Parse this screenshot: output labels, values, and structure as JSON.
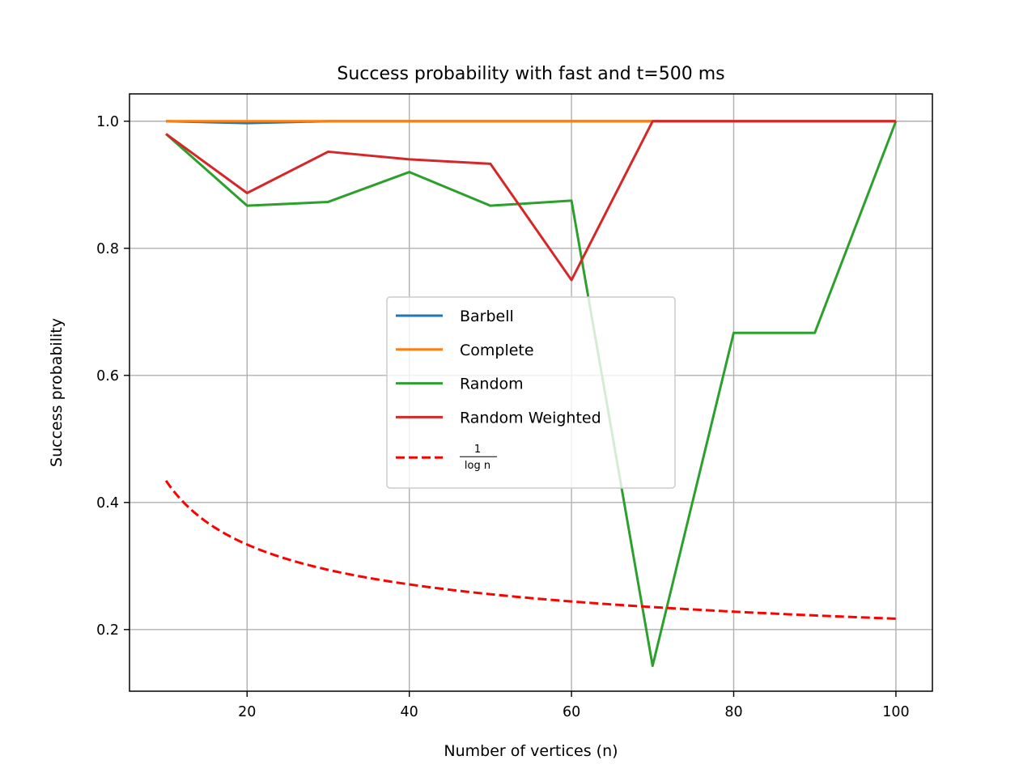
{
  "chart_data": {
    "type": "line",
    "title": "Success probability with fast and t=500 ms",
    "xlabel": "Number of vertices (n)",
    "ylabel": "Success probability",
    "xlim": [
      5.5,
      104.5
    ],
    "ylim": [
      0.103,
      1.043
    ],
    "xticks": [
      20,
      40,
      60,
      80,
      100
    ],
    "xtick_labels": [
      "20",
      "40",
      "60",
      "80",
      "100"
    ],
    "yticks": [
      0.2,
      0.4,
      0.6,
      0.8,
      1.0
    ],
    "ytick_labels": [
      "0.2",
      "0.4",
      "0.6",
      "0.8",
      "1.0"
    ],
    "grid": true,
    "legend_position": "center",
    "x": [
      10,
      20,
      30,
      40,
      50,
      60,
      70,
      80,
      90,
      100
    ],
    "series": [
      {
        "name": "Barbell",
        "color": "#1f77b4",
        "dashed": false,
        "values": [
          1.0,
          0.997,
          1.0,
          1.0,
          1.0,
          1.0,
          1.0,
          1.0,
          1.0,
          1.0
        ]
      },
      {
        "name": "Complete",
        "color": "#ff7f0e",
        "dashed": false,
        "values": [
          1.0,
          1.0,
          1.0,
          1.0,
          1.0,
          1.0,
          1.0,
          1.0,
          1.0,
          1.0
        ]
      },
      {
        "name": "Random",
        "color": "#2ca02c",
        "dashed": false,
        "values": [
          0.98,
          0.867,
          0.873,
          0.92,
          0.867,
          0.875,
          0.143,
          0.667,
          0.667,
          1.0
        ]
      },
      {
        "name": "Random Weighted",
        "color": "#d62728",
        "dashed": false,
        "values": [
          0.98,
          0.887,
          0.952,
          0.94,
          0.933,
          0.75,
          1.0,
          1.0,
          1.0,
          1.0
        ]
      },
      {
        "name_numerator": "1",
        "name_denominator": "log n",
        "color": "#ff0000",
        "dashed": true,
        "function": "1/ln(n)",
        "domain": [
          10,
          100
        ]
      }
    ]
  }
}
